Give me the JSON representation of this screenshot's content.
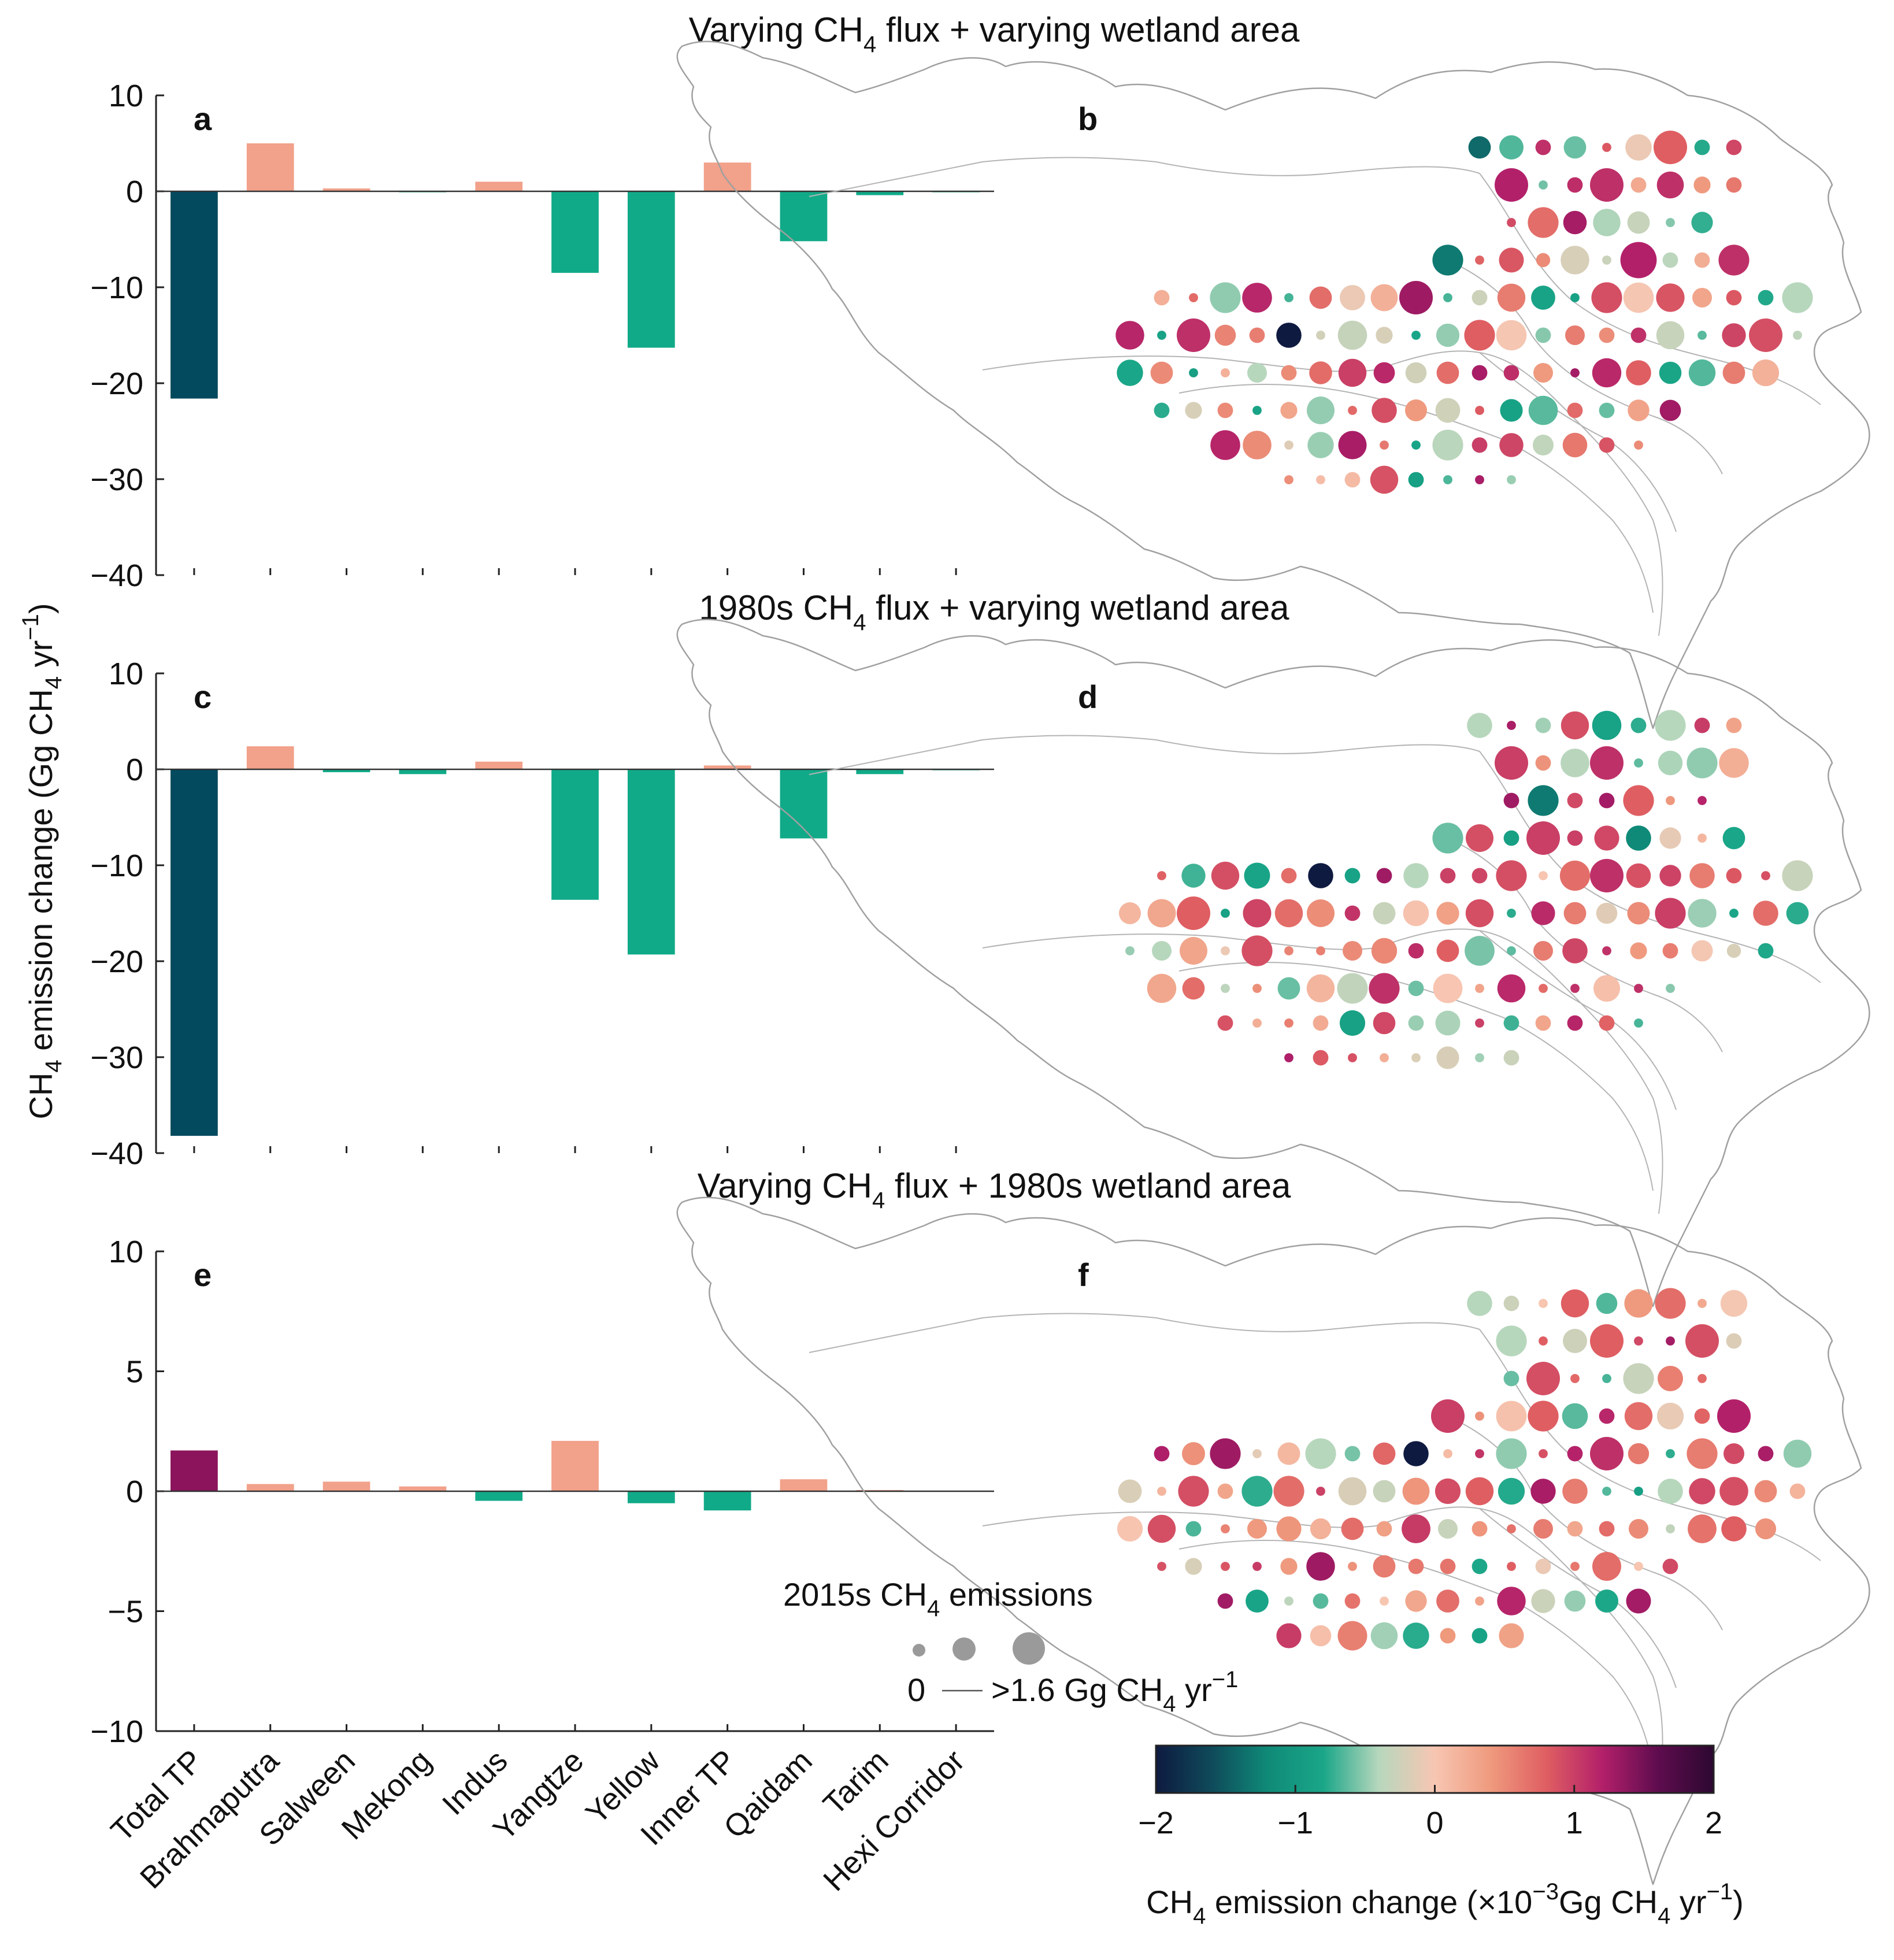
{
  "figure": {
    "colormap_stops": [
      "#0e1a40",
      "#0f4a5a",
      "#0f8a78",
      "#1aa688",
      "#b7d7bd",
      "#f7c6b2",
      "#ef9a7e",
      "#df5e62",
      "#b3206a",
      "#5e0c4e",
      "#2c0830"
    ],
    "colors": {
      "total_tp_neg": "#034a5e",
      "total_tp_pos": "#8b145c",
      "basin_neg": "#11aa88",
      "basin_pos": "#f2a18a",
      "map_outline": "#a0a0a0",
      "legend_circle": "#9a9a9a"
    }
  },
  "chart_data": [
    {
      "panel": "a",
      "type": "bar",
      "title_prefix": "Varying CH",
      "title_sub": "4",
      "title_suffix": " flux + varying wetland area",
      "categories": [
        "Total TP",
        "Brahmaputra",
        "Salween",
        "Mekong",
        "Indus",
        "Yangtze",
        "Yellow",
        "Inner TP",
        "Qaidam",
        "Tarim",
        "Hexi Corridor"
      ],
      "values": [
        -21.6,
        5.0,
        0.3,
        -0.1,
        1.0,
        -8.5,
        -16.3,
        3.0,
        -5.2,
        -0.4,
        -0.1
      ],
      "ylim": [
        -40,
        10
      ],
      "yticks": [
        10,
        0,
        -10,
        -20,
        -30,
        -40
      ],
      "ytick_labels": [
        "10",
        "0",
        "−10",
        "−20",
        "−30",
        "−40"
      ]
    },
    {
      "panel": "c",
      "type": "bar",
      "title_prefix": "1980s CH",
      "title_sub": "4",
      "title_suffix": " flux + varying wetland area",
      "categories": [
        "Total TP",
        "Brahmaputra",
        "Salween",
        "Mekong",
        "Indus",
        "Yangtze",
        "Yellow",
        "Inner TP",
        "Qaidam",
        "Tarim",
        "Hexi Corridor"
      ],
      "values": [
        -38.2,
        2.4,
        -0.3,
        -0.5,
        0.8,
        -13.6,
        -19.3,
        0.4,
        -7.2,
        -0.5,
        -0.1
      ],
      "ylim": [
        -40,
        10
      ],
      "yticks": [
        10,
        0,
        -10,
        -20,
        -30,
        -40
      ],
      "ytick_labels": [
        "10",
        "0",
        "−10",
        "−20",
        "−30",
        "−40"
      ]
    },
    {
      "panel": "e",
      "type": "bar",
      "title_prefix": "Varying CH",
      "title_sub": "4",
      "title_suffix": " flux + 1980s wetland area",
      "categories": [
        "Total TP",
        "Brahmaputra",
        "Salween",
        "Mekong",
        "Indus",
        "Yangtze",
        "Yellow",
        "Inner TP",
        "Qaidam",
        "Tarim",
        "Hexi Corridor"
      ],
      "values": [
        1.7,
        0.3,
        0.4,
        0.2,
        -0.4,
        2.1,
        -0.5,
        -0.8,
        0.5,
        0.05,
        0.02
      ],
      "ylim": [
        -10,
        10
      ],
      "yticks": [
        10,
        5,
        0,
        -5,
        -10
      ],
      "ytick_labels": [
        "10",
        "5",
        "0",
        "−5",
        "−10"
      ]
    }
  ],
  "axes": {
    "ylabel": {
      "ch": "CH",
      "sub": "4",
      "rest": " emission change (Gg CH",
      "sub2": "4",
      "unit": " yr",
      "sup": "−1",
      "close": ")"
    }
  },
  "maps": [
    {
      "panel": "b",
      "points": [
        [
          -1.4,
          0.6
        ],
        [
          -0.6,
          0.6
        ],
        [
          0.8,
          1.0
        ],
        [
          1.2,
          1.0
        ],
        [
          1.1,
          1.0
        ],
        [
          0.4,
          0.4
        ],
        [
          0.7,
          0.9
        ],
        [
          -0.3,
          0.6
        ],
        [
          -1.3,
          0.9
        ],
        [
          0.5,
          0.3
        ],
        [
          1.2,
          1.1
        ],
        [
          1.1,
          0.9
        ],
        [
          -0.5,
          0.9
        ],
        [
          0.7,
          0.6
        ],
        [
          1.3,
          1.0
        ],
        [
          0.6,
          0.8
        ],
        [
          0.9,
          0.9
        ],
        [
          0.3,
          0.5
        ],
        [
          -0.4,
          0.9
        ],
        [
          1.1,
          1.0
        ],
        [
          -2.0,
          0.7
        ],
        [
          -0.2,
          0.4
        ],
        [
          0.8,
          0.9
        ],
        [
          0.6,
          0.5
        ],
        [
          -0.3,
          0.8
        ],
        [
          0.9,
          1.0
        ],
        [
          0.5,
          0.6
        ],
        [
          -0.4,
          0.5
        ],
        [
          1.0,
          0.8
        ],
        [
          0.7,
          0.6
        ],
        [
          0.4,
          0.5
        ],
        [
          0.8,
          0.7
        ],
        [
          0.6,
          0.6
        ],
        [
          -0.2,
          0.4
        ],
        [
          0.3,
          0.4
        ],
        [
          0.9,
          0.7
        ]
      ]
    },
    {
      "panel": "d",
      "points": [
        [
          -0.4,
          0.7
        ],
        [
          0.9,
          0.8
        ],
        [
          -0.4,
          0.9
        ],
        [
          1.0,
          1.0
        ],
        [
          1.1,
          1.0
        ],
        [
          -0.5,
          0.9
        ],
        [
          -1.3,
          0.9
        ],
        [
          0.8,
          0.9
        ],
        [
          -0.6,
          0.9
        ],
        [
          1.0,
          1.0
        ],
        [
          -1.2,
          0.7
        ],
        [
          -0.8,
          0.6
        ],
        [
          0.9,
          0.8
        ],
        [
          -2.0,
          0.7
        ],
        [
          -0.4,
          0.7
        ],
        [
          0.9,
          0.9
        ],
        [
          1.1,
          1.0
        ],
        [
          0.6,
          0.7
        ],
        [
          -0.3,
          0.9
        ],
        [
          0.8,
          1.0
        ],
        [
          0.7,
          0.8
        ],
        [
          -0.3,
          0.6
        ],
        [
          0.9,
          0.8
        ],
        [
          0.6,
          0.6
        ],
        [
          1.0,
          0.9
        ],
        [
          0.7,
          0.7
        ],
        [
          -0.4,
          0.5
        ],
        [
          0.9,
          0.9
        ],
        [
          0.5,
          0.5
        ],
        [
          0.8,
          0.6
        ],
        [
          0.6,
          0.5
        ],
        [
          0.4,
          0.4
        ],
        [
          -0.2,
          0.3
        ],
        [
          0.7,
          0.6
        ],
        [
          -0.6,
          0.6
        ],
        [
          1.1,
          0.9
        ]
      ]
    },
    {
      "panel": "f",
      "points": [
        [
          -0.4,
          0.7
        ],
        [
          0.8,
          0.8
        ],
        [
          0.7,
          0.9
        ],
        [
          -0.4,
          0.9
        ],
        [
          0.8,
          1.0
        ],
        [
          0.9,
          1.0
        ],
        [
          0.9,
          1.0
        ],
        [
          -0.3,
          0.9
        ],
        [
          1.0,
          1.0
        ],
        [
          0.8,
          0.9
        ],
        [
          0.7,
          0.8
        ],
        [
          1.2,
          1.0
        ],
        [
          1.3,
          0.9
        ],
        [
          -0.4,
          0.9
        ],
        [
          -2.0,
          0.7
        ],
        [
          -0.5,
          0.9
        ],
        [
          1.1,
          1.0
        ],
        [
          0.6,
          0.9
        ],
        [
          -0.5,
          0.8
        ],
        [
          0.9,
          0.9
        ],
        [
          0.7,
          0.9
        ],
        [
          -0.3,
          0.6
        ],
        [
          0.8,
          0.8
        ],
        [
          0.6,
          0.7
        ],
        [
          -0.4,
          0.7
        ],
        [
          0.5,
          0.6
        ],
        [
          0.9,
          0.8
        ],
        [
          0.4,
          0.5
        ],
        [
          0.7,
          0.6
        ],
        [
          -0.3,
          0.5
        ],
        [
          0.6,
          0.5
        ],
        [
          0.5,
          0.5
        ],
        [
          0.8,
          0.7
        ],
        [
          -0.2,
          0.4
        ],
        [
          0.4,
          0.4
        ],
        [
          0.6,
          0.6
        ]
      ]
    }
  ],
  "size_legend": {
    "title_pre": "2015s CH",
    "title_sub": "4",
    "title_post": " emissions",
    "min_label": "0",
    "max_pre": ">1.6 Gg CH",
    "max_sub": "4",
    "max_unit": " yr",
    "max_sup": "−1"
  },
  "colorbar": {
    "ticks": [
      -2,
      -1,
      0,
      1,
      2
    ],
    "tick_labels": [
      "−2",
      "−1",
      "0",
      "1",
      "2"
    ],
    "label": {
      "ch": "CH",
      "sub": "4",
      "rest": " emission change (×10",
      "sup": "−3",
      "rest2": "Gg CH",
      "sub2": "4",
      "unit": " yr",
      "sup2": "−1",
      "close": ")"
    }
  }
}
